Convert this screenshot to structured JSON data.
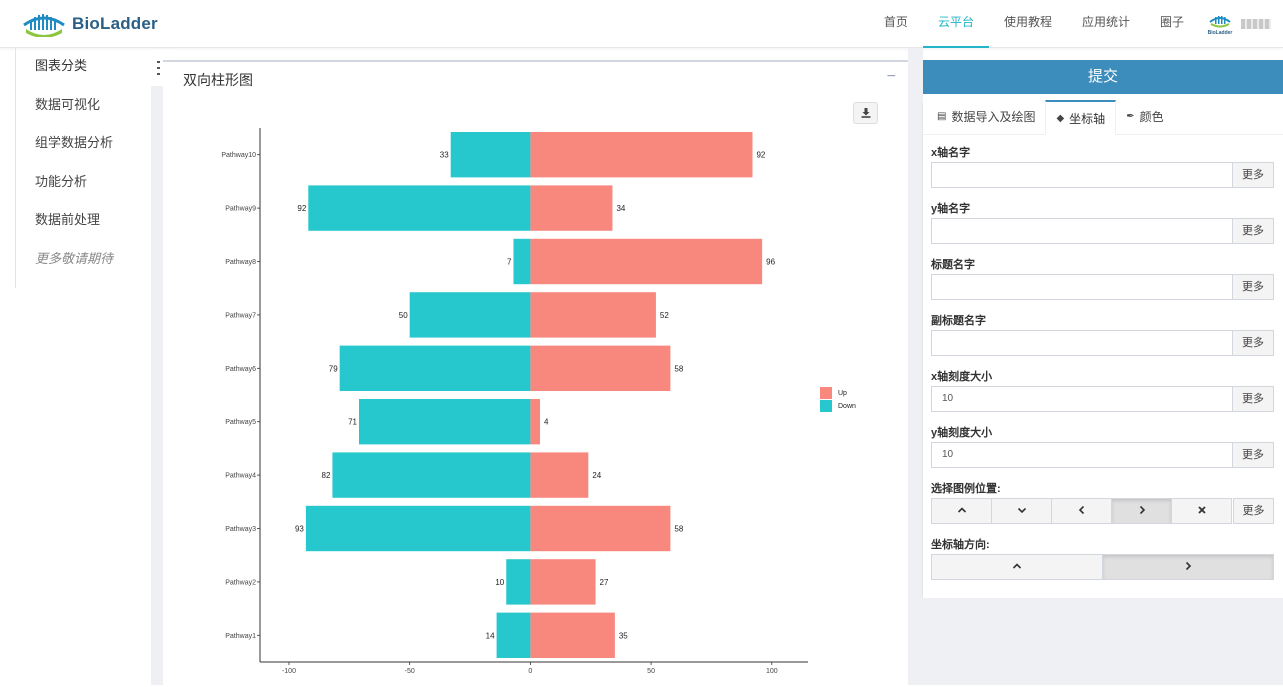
{
  "brand": {
    "name": "BioLadder",
    "avatar_text": "BioLadder"
  },
  "nav": {
    "items": [
      "首页",
      "云平台",
      "使用教程",
      "应用统计",
      "圈子"
    ],
    "active_index": 1
  },
  "sidebar": {
    "items": [
      "图表分类",
      "数据可视化",
      "组学数据分析",
      "功能分析",
      "数据前处理",
      "更多敬请期待"
    ]
  },
  "panel": {
    "title": "双向柱形图",
    "collapse_label": "−"
  },
  "submit": {
    "label": "提交"
  },
  "tabs": [
    {
      "label": "数据导入及绘图",
      "icon": "bar-chart-icon"
    },
    {
      "label": "坐标轴",
      "icon": "tags-icon"
    },
    {
      "label": "颜色",
      "icon": "brush-icon"
    }
  ],
  "active_tab": 1,
  "fields": {
    "x_name": {
      "label": "x轴名字",
      "value": "",
      "more": "更多"
    },
    "y_name": {
      "label": "y轴名字",
      "value": "",
      "more": "更多"
    },
    "title": {
      "label": "标题名字",
      "value": "",
      "more": "更多"
    },
    "subtitle": {
      "label": "副标题名字",
      "value": "",
      "more": "更多"
    },
    "x_tick": {
      "label": "x轴刻度大小",
      "value": "10",
      "more": "更多"
    },
    "y_tick": {
      "label": "y轴刻度大小",
      "value": "10",
      "more": "更多"
    },
    "legend_pos": {
      "label": "选择图例位置:",
      "options": [
        "^",
        "v",
        "<",
        ">",
        "×"
      ],
      "selected": 3,
      "more": "更多"
    },
    "axis_dir": {
      "label": "坐标轴方向:",
      "options": [
        "^",
        ">"
      ],
      "selected": 1
    }
  },
  "colors": {
    "up": "#f8877d",
    "down": "#27c8cd",
    "accent": "#3c8dbc",
    "nav_active": "#21b5c7"
  },
  "chart_data": {
    "type": "bar",
    "orientation": "horizontal",
    "categories": [
      "Pathway10",
      "Pathway9",
      "Pathway8",
      "Pathway7",
      "Pathway6",
      "Pathway5",
      "Pathway4",
      "Pathway3",
      "Pathway2",
      "Pathway1"
    ],
    "series": [
      {
        "name": "Up",
        "values": [
          92,
          34,
          96,
          52,
          58,
          4,
          24,
          58,
          27,
          35
        ]
      },
      {
        "name": "Down",
        "values": [
          -33,
          -92,
          -7,
          -50,
          -79,
          -71,
          -82,
          -93,
          -10,
          -14
        ]
      }
    ],
    "data_labels": {
      "Up": [
        "92",
        "34",
        "96",
        "52",
        "58",
        "4",
        "24",
        "58",
        "27",
        "35"
      ],
      "Down": [
        "33",
        "92",
        "7",
        "50",
        "79",
        "71",
        "82",
        "93",
        "10",
        "14"
      ]
    },
    "x_ticks": [
      "-100",
      "-50",
      "0",
      "50",
      "100"
    ],
    "x_tick_values": [
      -100,
      -50,
      0,
      50,
      100
    ],
    "xlim": [
      -112,
      115
    ],
    "legend": [
      "Up",
      "Down"
    ],
    "legend_position": "right",
    "grid": false
  }
}
